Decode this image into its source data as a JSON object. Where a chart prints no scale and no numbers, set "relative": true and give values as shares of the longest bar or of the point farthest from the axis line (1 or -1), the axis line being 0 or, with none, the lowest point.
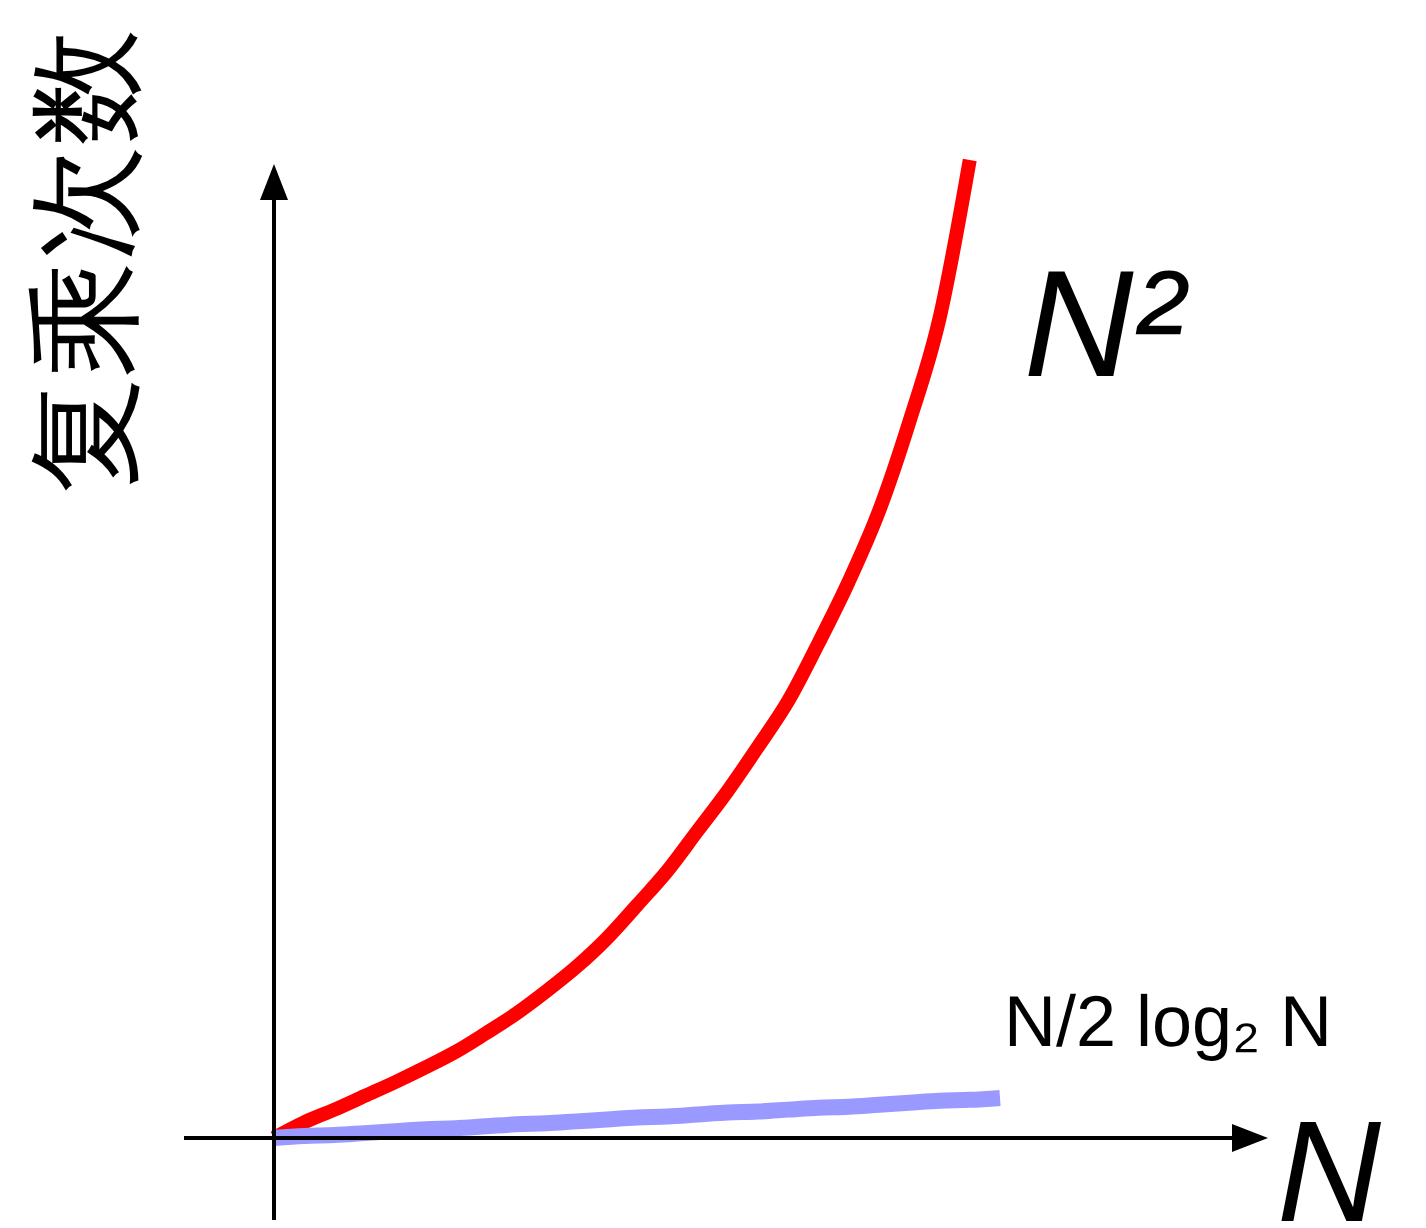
{
  "chart_data": {
    "type": "line",
    "relative": true,
    "ylabel": "复乘次数",
    "xlabel": "N",
    "categories": [
      null,
      null,
      null,
      null,
      null,
      null,
      null,
      null,
      null,
      null,
      null,
      null,
      null,
      null,
      null,
      null,
      null,
      null,
      null,
      null,
      null,
      null,
      null,
      null,
      null
    ],
    "series": [
      {
        "name": "N²",
        "color": "#ff0000",
        "values": [
          0,
          0.016,
          0.029,
          0.043,
          0.057,
          0.072,
          0.088,
          0.107,
          0.127,
          0.15,
          0.175,
          0.204,
          0.238,
          0.273,
          0.314,
          0.355,
          0.4,
          0.447,
          0.506,
          0.569,
          0.641,
          0.732,
          0.838,
          1,
          null
        ]
      },
      {
        "name": "N/2 log₂ N",
        "color": "#9999ff",
        "values": [
          0,
          0.002,
          0.003,
          0.005,
          0.007,
          0.009,
          0.01,
          0.012,
          0.014,
          0.015,
          0.017,
          0.019,
          0.021,
          0.022,
          0.024,
          0.026,
          0.027,
          0.029,
          0.031,
          0.032,
          0.034,
          0.036,
          0.038,
          0.039,
          0.041
        ]
      }
    ]
  }
}
